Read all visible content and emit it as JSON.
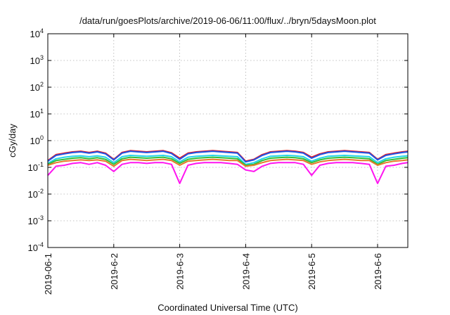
{
  "chart_data": {
    "type": "line",
    "title": "/data/run/goesPlots/archive/2019-06-06/11:00/flux/../bryn/5daysMoon.plot",
    "xlabel": "Coordinated Universal Time (UTC)",
    "ylabel": "cGy/day",
    "yscale": "log",
    "ylim": [
      0.0001,
      10000
    ],
    "xlim": [
      "2019-06-01 00:00",
      "2019-06-06 11:00"
    ],
    "grid": true,
    "legend": "none",
    "x_ticks": [
      "2019-06-1",
      "2019-6-2",
      "2019-6-3",
      "2019-6-4",
      "2019-6-5",
      "2019-6-6"
    ],
    "y_ticks": [
      {
        "base": "10",
        "exp": "-4"
      },
      {
        "base": "10",
        "exp": "-3"
      },
      {
        "base": "10",
        "exp": "-2"
      },
      {
        "base": "10",
        "exp": "-1"
      },
      {
        "base": "10",
        "exp": "0"
      },
      {
        "base": "10",
        "exp": "1"
      },
      {
        "base": "10",
        "exp": "2"
      },
      {
        "base": "10",
        "exp": "3"
      },
      {
        "base": "10",
        "exp": "4"
      }
    ],
    "x": [
      "2019-06-01 00:00",
      "2019-06-01 03:00",
      "2019-06-01 06:00",
      "2019-06-01 09:00",
      "2019-06-01 12:00",
      "2019-06-01 15:00",
      "2019-06-01 18:00",
      "2019-06-01 21:00",
      "2019-06-02 00:00",
      "2019-06-02 03:00",
      "2019-06-02 06:00",
      "2019-06-02 09:00",
      "2019-06-02 12:00",
      "2019-06-02 15:00",
      "2019-06-02 18:00",
      "2019-06-02 21:00",
      "2019-06-03 00:00",
      "2019-06-03 03:00",
      "2019-06-03 06:00",
      "2019-06-03 09:00",
      "2019-06-03 12:00",
      "2019-06-03 15:00",
      "2019-06-03 18:00",
      "2019-06-03 21:00",
      "2019-06-04 00:00",
      "2019-06-04 03:00",
      "2019-06-04 06:00",
      "2019-06-04 09:00",
      "2019-06-04 12:00",
      "2019-06-04 15:00",
      "2019-06-04 18:00",
      "2019-06-04 21:00",
      "2019-06-05 00:00",
      "2019-06-05 03:00",
      "2019-06-05 06:00",
      "2019-06-05 09:00",
      "2019-06-05 12:00",
      "2019-06-05 15:00",
      "2019-06-05 18:00",
      "2019-06-05 21:00",
      "2019-06-06 00:00",
      "2019-06-06 03:00",
      "2019-06-06 06:00",
      "2019-06-06 09:00",
      "2019-06-06 11:00"
    ],
    "series": [
      {
        "color": "#e8141e",
        "values": [
          0.18,
          0.3,
          0.34,
          0.38,
          0.4,
          0.36,
          0.4,
          0.34,
          0.2,
          0.36,
          0.42,
          0.4,
          0.38,
          0.4,
          0.42,
          0.35,
          0.22,
          0.34,
          0.38,
          0.4,
          0.42,
          0.4,
          0.38,
          0.36,
          0.17,
          0.2,
          0.3,
          0.38,
          0.4,
          0.42,
          0.4,
          0.36,
          0.24,
          0.32,
          0.38,
          0.4,
          0.42,
          0.4,
          0.38,
          0.36,
          0.2,
          0.3,
          0.34,
          0.38,
          0.4
        ]
      },
      {
        "color": "#1f55e6",
        "values": [
          0.17,
          0.28,
          0.32,
          0.36,
          0.38,
          0.34,
          0.38,
          0.32,
          0.19,
          0.34,
          0.4,
          0.38,
          0.36,
          0.38,
          0.4,
          0.33,
          0.2,
          0.32,
          0.36,
          0.38,
          0.4,
          0.38,
          0.36,
          0.34,
          0.16,
          0.19,
          0.28,
          0.36,
          0.38,
          0.4,
          0.38,
          0.34,
          0.22,
          0.3,
          0.36,
          0.38,
          0.4,
          0.38,
          0.36,
          0.34,
          0.19,
          0.28,
          0.32,
          0.36,
          0.38
        ]
      },
      {
        "color": "#22d4e8",
        "values": [
          0.14,
          0.21,
          0.24,
          0.26,
          0.27,
          0.25,
          0.27,
          0.24,
          0.15,
          0.25,
          0.28,
          0.27,
          0.26,
          0.27,
          0.28,
          0.25,
          0.16,
          0.24,
          0.26,
          0.27,
          0.28,
          0.27,
          0.26,
          0.25,
          0.13,
          0.15,
          0.21,
          0.26,
          0.27,
          0.28,
          0.27,
          0.25,
          0.17,
          0.22,
          0.26,
          0.27,
          0.28,
          0.27,
          0.26,
          0.25,
          0.15,
          0.21,
          0.24,
          0.26,
          0.27
        ]
      },
      {
        "color": "#2fbf3a",
        "values": [
          0.13,
          0.18,
          0.2,
          0.22,
          0.23,
          0.21,
          0.23,
          0.2,
          0.13,
          0.21,
          0.24,
          0.23,
          0.22,
          0.23,
          0.24,
          0.21,
          0.14,
          0.2,
          0.22,
          0.23,
          0.24,
          0.23,
          0.22,
          0.21,
          0.12,
          0.13,
          0.18,
          0.22,
          0.23,
          0.24,
          0.23,
          0.21,
          0.15,
          0.19,
          0.22,
          0.23,
          0.24,
          0.23,
          0.22,
          0.21,
          0.13,
          0.18,
          0.2,
          0.22,
          0.23
        ]
      },
      {
        "color": "#e8782a",
        "values": [
          0.12,
          0.15,
          0.17,
          0.18,
          0.19,
          0.18,
          0.19,
          0.17,
          0.11,
          0.18,
          0.2,
          0.19,
          0.18,
          0.19,
          0.2,
          0.18,
          0.12,
          0.17,
          0.18,
          0.19,
          0.2,
          0.19,
          0.18,
          0.18,
          0.11,
          0.12,
          0.15,
          0.18,
          0.19,
          0.2,
          0.19,
          0.18,
          0.13,
          0.16,
          0.18,
          0.19,
          0.2,
          0.19,
          0.18,
          0.18,
          0.12,
          0.15,
          0.17,
          0.18,
          0.19
        ]
      },
      {
        "color": "#ff14f0",
        "values": [
          0.05,
          0.11,
          0.12,
          0.14,
          0.15,
          0.13,
          0.15,
          0.12,
          0.07,
          0.13,
          0.15,
          0.15,
          0.14,
          0.15,
          0.15,
          0.13,
          0.025,
          0.12,
          0.14,
          0.15,
          0.15,
          0.15,
          0.14,
          0.13,
          0.08,
          0.07,
          0.11,
          0.14,
          0.15,
          0.15,
          0.15,
          0.13,
          0.05,
          0.12,
          0.14,
          0.15,
          0.15,
          0.15,
          0.14,
          0.13,
          0.025,
          0.11,
          0.12,
          0.14,
          0.15
        ]
      }
    ]
  }
}
